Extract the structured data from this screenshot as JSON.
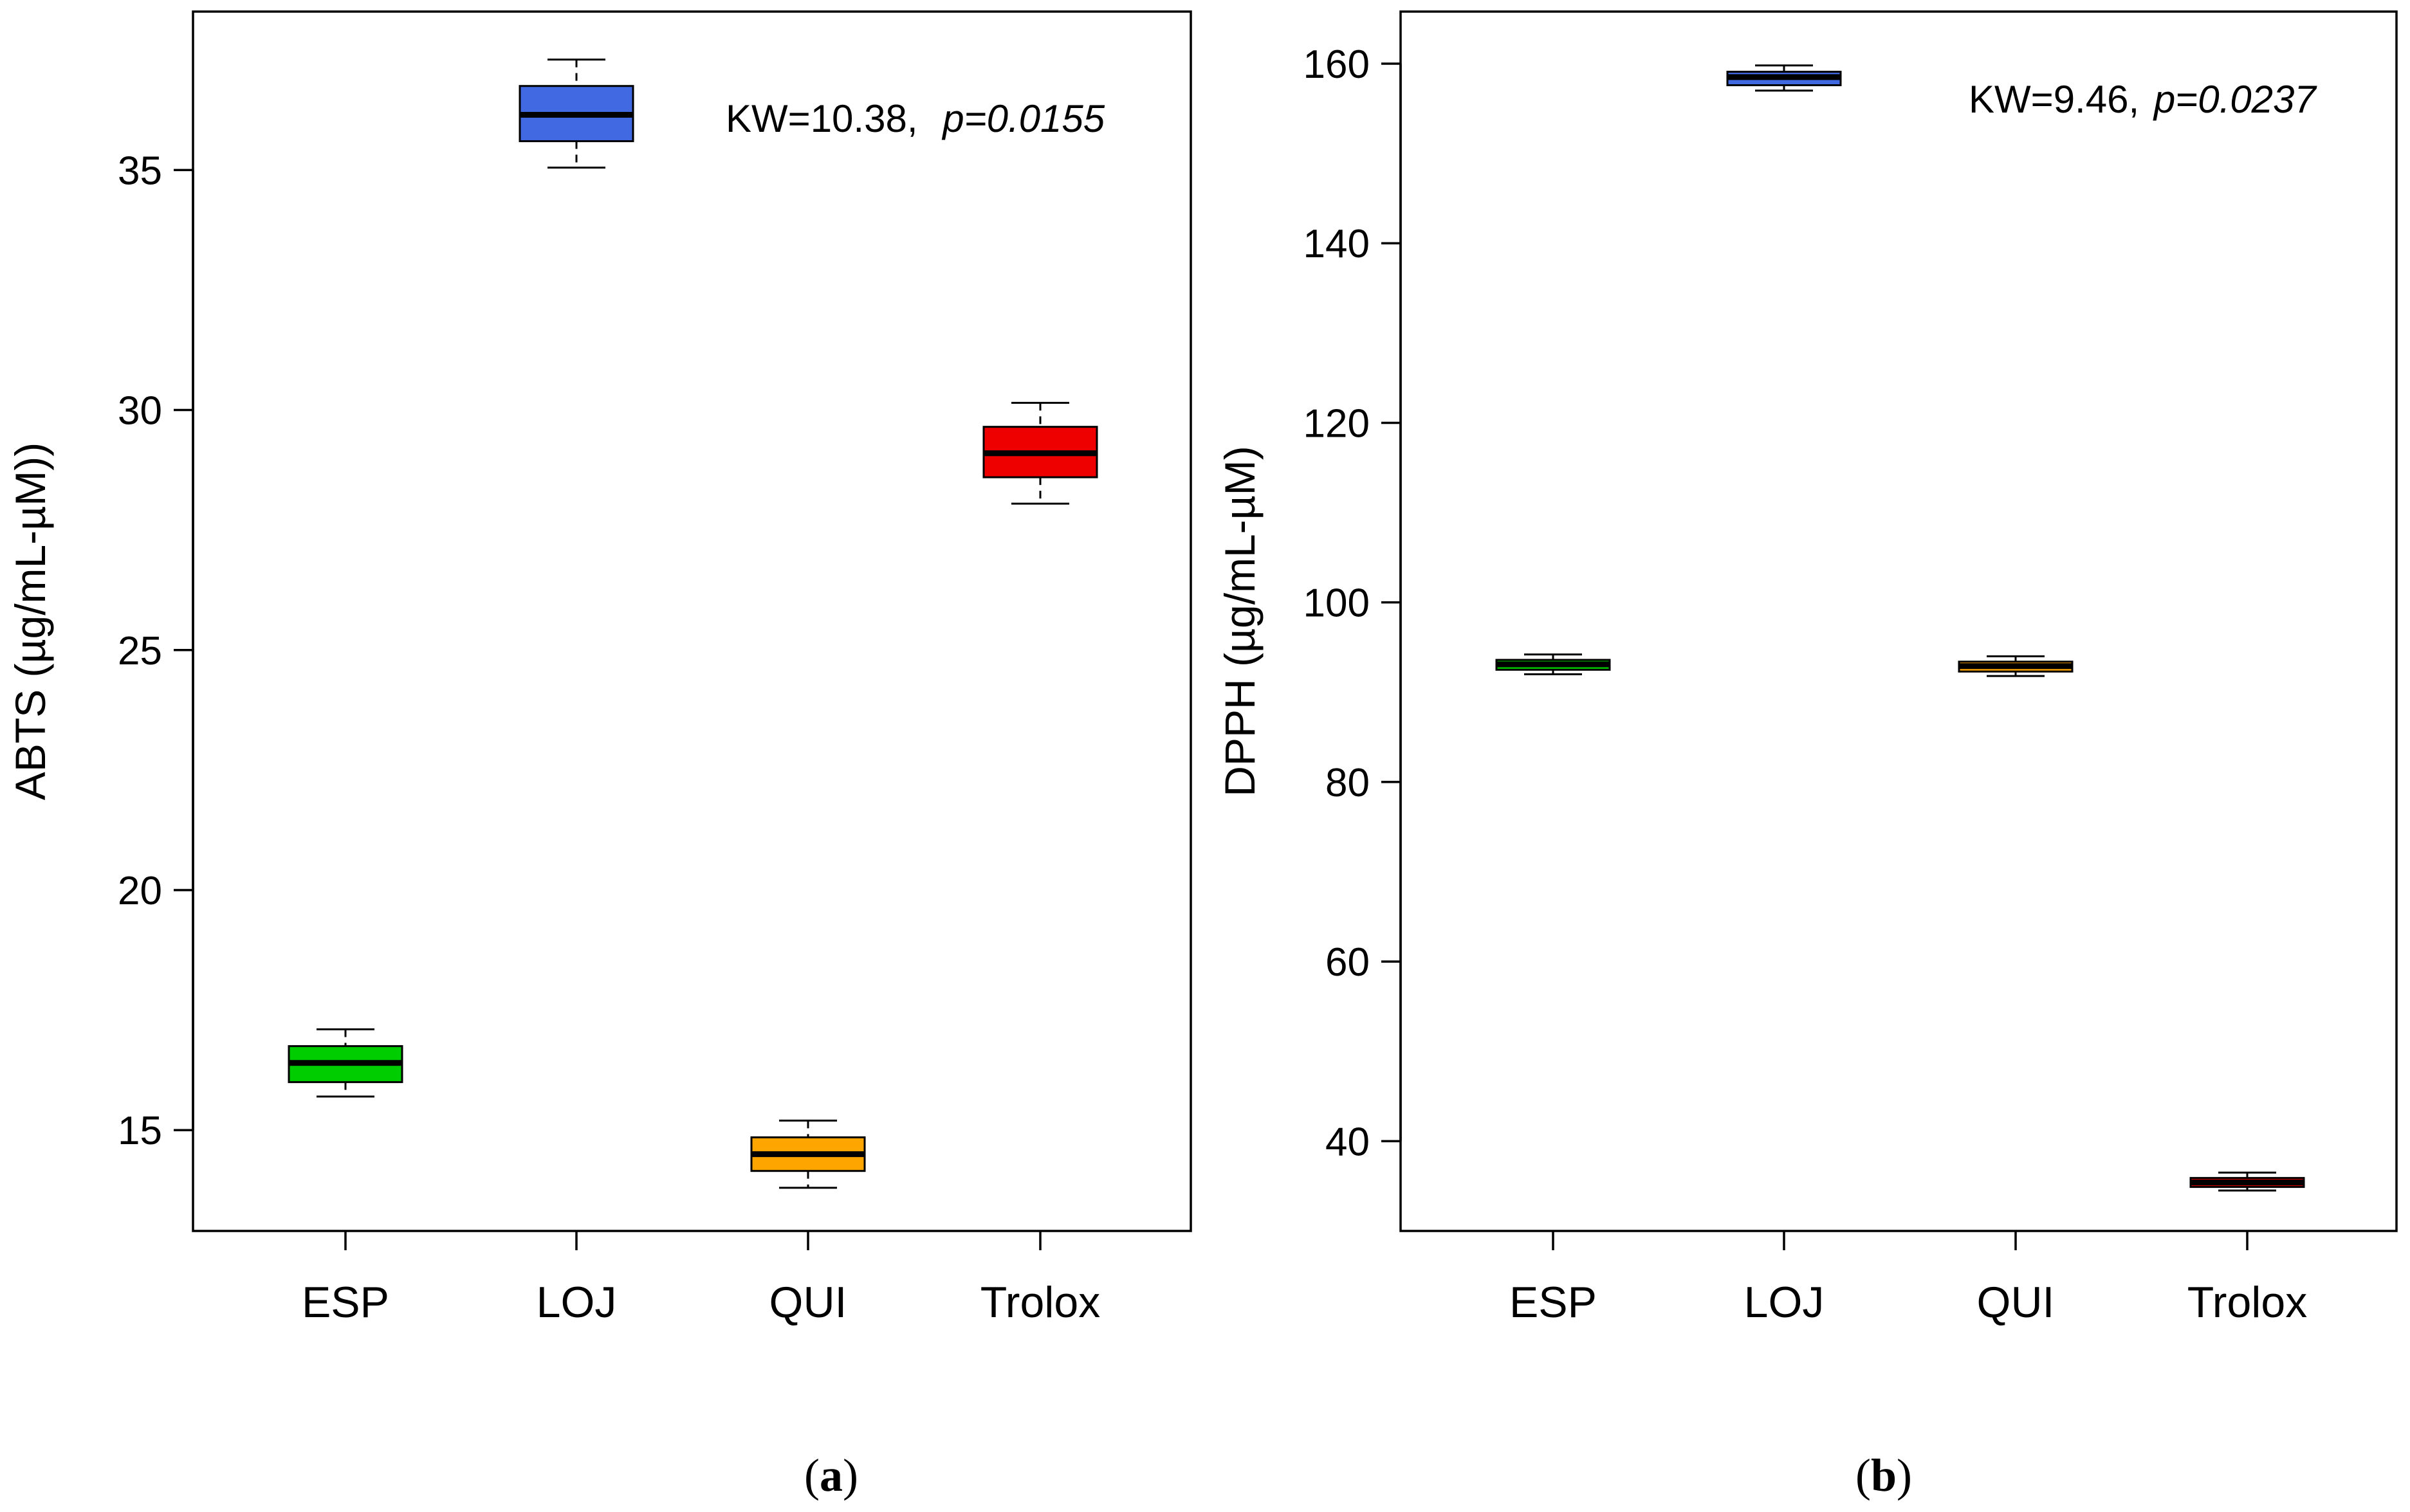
{
  "chart_data": [
    {
      "type": "boxplot",
      "panel_label": "a",
      "ylabel": "ABTS (µg/mL-µM))",
      "categories": [
        "ESP",
        "LOJ",
        "QUI",
        "Trolox"
      ],
      "colors": [
        "#00cd00",
        "#4169e1",
        "#ffa500",
        "#ee0000"
      ],
      "ylim": [
        12.9,
        38.3
      ],
      "yticks": [
        15,
        20,
        25,
        30,
        35
      ],
      "boxes": [
        {
          "min": 15.7,
          "q1": 16.0,
          "median": 16.4,
          "q3": 16.75,
          "max": 17.1
        },
        {
          "min": 35.05,
          "q1": 35.6,
          "median": 36.15,
          "q3": 36.75,
          "max": 37.3
        },
        {
          "min": 13.8,
          "q1": 14.15,
          "median": 14.5,
          "q3": 14.85,
          "max": 15.2
        },
        {
          "min": 28.05,
          "q1": 28.6,
          "median": 29.1,
          "q3": 29.65,
          "max": 30.15
        }
      ],
      "annotation": {
        "kw": "KW=10.38,",
        "p": "p=0.0155"
      }
    },
    {
      "type": "boxplot",
      "panel_label": "b",
      "ylabel": "DPPH (µg/mL-µM)",
      "categories": [
        "ESP",
        "LOJ",
        "QUI",
        "Trolox"
      ],
      "colors": [
        "#00cd00",
        "#4169e1",
        "#ffa500",
        "#ee0000"
      ],
      "ylim": [
        30.0,
        165.8
      ],
      "yticks": [
        40,
        60,
        80,
        100,
        120,
        140,
        160
      ],
      "boxes": [
        {
          "min": 92.0,
          "q1": 92.5,
          "median": 93.1,
          "q3": 93.6,
          "max": 94.2
        },
        {
          "min": 157.0,
          "q1": 157.6,
          "median": 158.5,
          "q3": 159.1,
          "max": 159.8
        },
        {
          "min": 91.8,
          "q1": 92.3,
          "median": 92.9,
          "q3": 93.4,
          "max": 94.0
        },
        {
          "min": 34.5,
          "q1": 34.9,
          "median": 35.4,
          "q3": 35.9,
          "max": 36.5
        }
      ],
      "annotation": {
        "kw": "KW=9.46,",
        "p": "p=0.0237"
      }
    }
  ]
}
